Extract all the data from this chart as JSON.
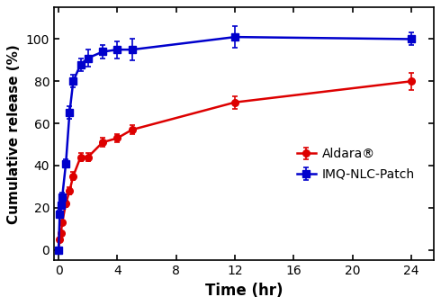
{
  "aldara_x": [
    0,
    0.083,
    0.167,
    0.25,
    0.5,
    0.75,
    1,
    1.5,
    2,
    3,
    4,
    5,
    12,
    24
  ],
  "aldara_y": [
    0,
    5,
    8,
    13,
    22,
    28,
    35,
    44,
    44,
    51,
    53,
    57,
    70,
    80
  ],
  "aldara_yerr": [
    0,
    0.5,
    0.8,
    1.0,
    1.5,
    1.5,
    2,
    2,
    2,
    2,
    2,
    2,
    3,
    4
  ],
  "nlc_x": [
    0,
    0.083,
    0.167,
    0.25,
    0.5,
    0.75,
    1,
    1.5,
    2,
    3,
    4,
    5,
    12,
    24
  ],
  "nlc_y": [
    0,
    17,
    21,
    25,
    41,
    65,
    80,
    88,
    91,
    94,
    95,
    95,
    101,
    100
  ],
  "nlc_yerr": [
    0,
    1.5,
    1.5,
    2,
    2,
    3,
    3,
    3,
    4,
    3,
    4,
    5,
    5,
    3
  ],
  "aldara_color": "#DD0000",
  "nlc_color": "#0000CC",
  "xlabel": "Time (hr)",
  "ylabel": "Cumulative release (%)",
  "xlim": [
    -0.3,
    25.5
  ],
  "ylim": [
    -5,
    115
  ],
  "xticks": [
    0,
    4,
    8,
    12,
    16,
    20,
    24
  ],
  "yticks": [
    0,
    20,
    40,
    60,
    80,
    100
  ],
  "legend_aldara": "Aldara®",
  "legend_nlc": "IMQ-NLC-Patch",
  "bg_color": "#ffffff"
}
